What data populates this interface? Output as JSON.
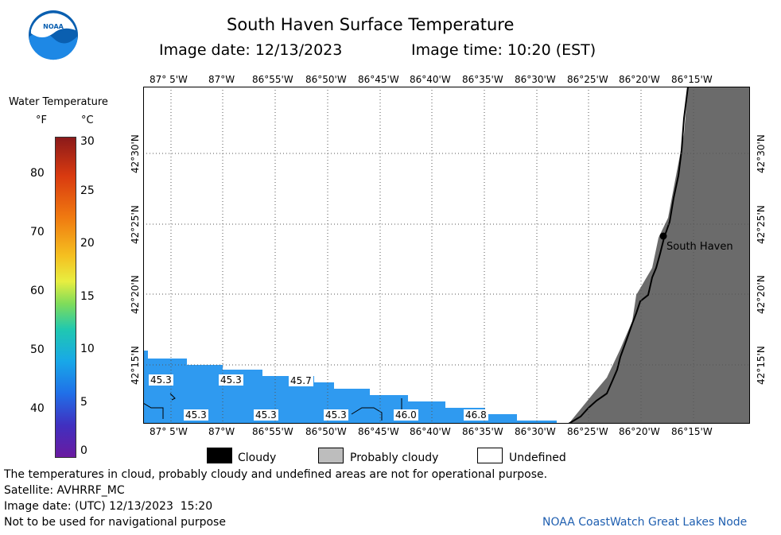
{
  "header": {
    "title": "South Haven Surface Temperature",
    "image_date": "Image date: 12/13/2023",
    "image_time": "Image time: 10:20 (EST)"
  },
  "logo": {
    "text": "NOAA",
    "icon": "noaa-logo"
  },
  "colorbar": {
    "title": "Water Temperature",
    "unit_f": "°F",
    "unit_c": "°C",
    "f_ticks": [
      "80",
      "70",
      "60",
      "50",
      "40"
    ],
    "c_ticks": [
      "30",
      "25",
      "20",
      "15",
      "10",
      "5",
      "0"
    ]
  },
  "map": {
    "lon_labels": [
      "87° 5'W",
      "87°W",
      "86°55'W",
      "86°50'W",
      "86°45'W",
      "86°40'W",
      "86°35'W",
      "86°30'W",
      "86°25'W",
      "86°20'W",
      "86°15'W"
    ],
    "lat_labels": [
      "42°30'N",
      "42°25'N",
      "42°20'N",
      "42°15'N"
    ],
    "place": "South Haven",
    "sst_labels": [
      "45.3",
      "45.3",
      "45.7",
      "45.3",
      "45.3",
      "45.3",
      "46.0",
      "46.8"
    ],
    "colors": {
      "water": "#2f9af0",
      "land": "#6b6b6b"
    }
  },
  "legend": {
    "cloudy": "Cloudy",
    "probably_cloudy": "Probably cloudy",
    "undefined": "Undefined"
  },
  "footer": {
    "disclaimer": "The temperatures in cloud, probably cloudy and undefined areas are not for operational purpose.",
    "satellite": "Satellite: AVHRRF_MC",
    "utc": "Image date: (UTC) 12/13/2023  15:20",
    "nav": "Not to be used for navigational purpose",
    "credit": "NOAA CoastWatch Great Lakes Node"
  }
}
